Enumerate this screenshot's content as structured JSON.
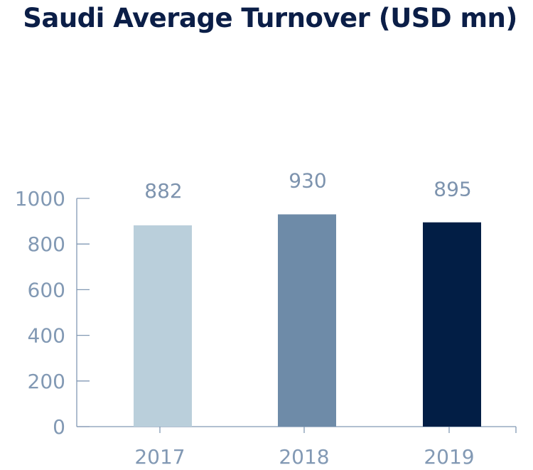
{
  "chart_data": {
    "type": "bar",
    "title": "Saudi Average Turnover (USD mn)",
    "xlabel": "",
    "ylabel": "",
    "categories": [
      "2017",
      "2018",
      "2019"
    ],
    "values": [
      882,
      930,
      895
    ],
    "data_labels": [
      "882",
      "930",
      "895"
    ],
    "bar_colors": [
      "#bacfdb",
      "#6e8ba8",
      "#021e45"
    ],
    "ylim": [
      0,
      1000
    ],
    "yticks": [
      0,
      200,
      400,
      600,
      800,
      1000
    ],
    "ytick_labels": [
      "0",
      "200",
      "400",
      "600",
      "800",
      "1000"
    ],
    "grid": false,
    "legend": "none"
  },
  "colors": {
    "title": "#0b1e47",
    "axis": "#8299b4",
    "tick_text": "#8299b4"
  }
}
